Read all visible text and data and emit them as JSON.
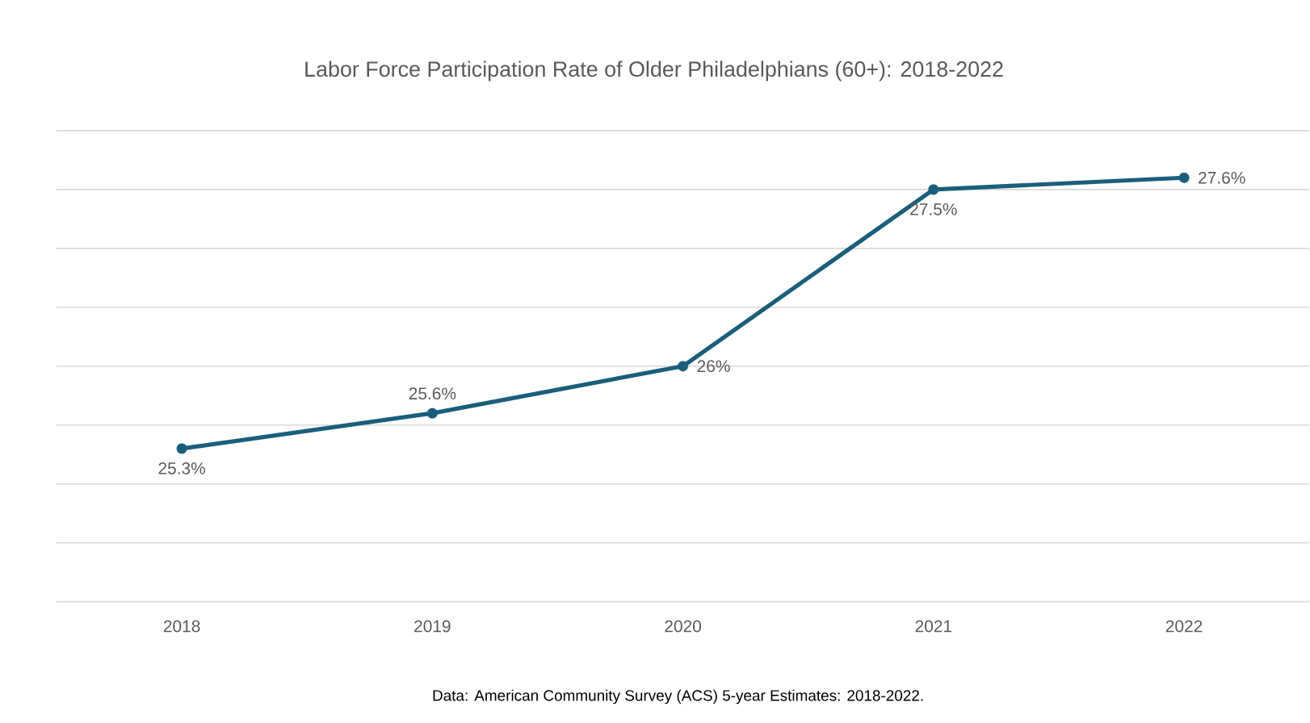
{
  "chart_data": {
    "type": "line",
    "title": "Labor Force Participation Rate of Older Philadelphians (60+): 2018-2022",
    "categories": [
      "2018",
      "2019",
      "2020",
      "2021",
      "2022"
    ],
    "values": [
      25.3,
      25.6,
      26,
      27.5,
      27.6
    ],
    "value_labels": [
      "25.3%",
      "25.6%",
      "26%",
      "27.5%",
      "27.6%"
    ],
    "color": "#1b5e7b",
    "marker": "circle",
    "grid": "y",
    "tick_labels": "x",
    "ylim": [
      24,
      28
    ],
    "yticks": [
      {
        "value": 24,
        "label": null
      },
      {
        "value": 24.5,
        "label": null
      },
      {
        "value": 25,
        "label": null
      },
      {
        "value": 25.5,
        "label": null
      },
      {
        "value": 26,
        "label": null
      },
      {
        "value": 26.5,
        "label": null
      },
      {
        "value": 27,
        "label": null
      },
      {
        "value": 27.5,
        "label": null
      },
      {
        "value": 28,
        "label": null
      }
    ],
    "annotations": [
      "Data: American Community Survey (ACS) 5-year Estimates: 2018-2022."
    ]
  }
}
